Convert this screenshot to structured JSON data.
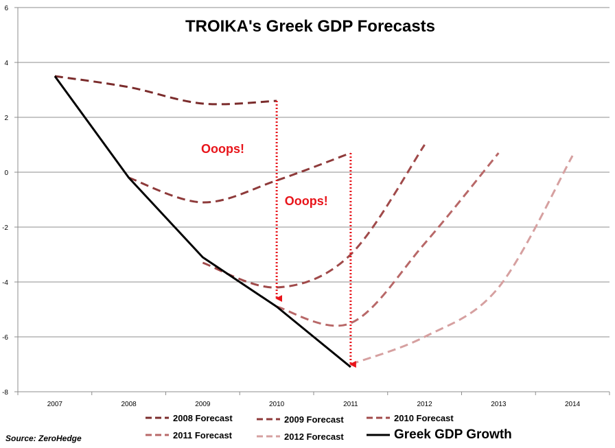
{
  "chart_data": {
    "type": "line",
    "title": "TROIKA's Greek GDP Forecasts",
    "xlabel": "",
    "ylabel": "",
    "x_ticks": [
      "2007",
      "2008",
      "2009",
      "2010",
      "2011",
      "2012",
      "2013",
      "2014"
    ],
    "xlim": [
      2006.5,
      2014.5
    ],
    "ylim": [
      -8,
      6
    ],
    "y_ticks": [
      6,
      4,
      2,
      0,
      -2,
      -4,
      -6,
      -8
    ],
    "grid": "horizontal",
    "legend_position": "bottom",
    "series": [
      {
        "name": "2008 Forecast",
        "color": "#7b2c2c",
        "style": "dashed",
        "x": [
          2007,
          2008,
          2009,
          2010
        ],
        "y": [
          3.5,
          3.1,
          2.5,
          2.6
        ]
      },
      {
        "name": "2009 Forecast",
        "color": "#8e3a3a",
        "style": "dashed",
        "x": [
          2008,
          2009,
          2010,
          2011
        ],
        "y": [
          -0.2,
          -1.1,
          -0.3,
          0.7
        ]
      },
      {
        "name": "2010 Forecast",
        "color": "#a04a4a",
        "style": "dashed",
        "x": [
          2009,
          2010,
          2011,
          2012
        ],
        "y": [
          -3.3,
          -4.2,
          -3.0,
          1.0
        ]
      },
      {
        "name": "2011 Forecast",
        "color": "#b86868",
        "style": "dashed",
        "x": [
          2010,
          2011,
          2012,
          2013
        ],
        "y": [
          -4.9,
          -5.5,
          -2.6,
          0.7
        ]
      },
      {
        "name": "2012 Forecast",
        "color": "#d6a0a0",
        "style": "dashed",
        "x": [
          2011,
          2012,
          2013,
          2014
        ],
        "y": [
          -7.0,
          -6.0,
          -4.2,
          0.6
        ]
      },
      {
        "name": "Greek GDP Growth",
        "color": "#000000",
        "style": "solid",
        "x": [
          2007,
          2008,
          2009,
          2010,
          2011
        ],
        "y": [
          3.5,
          -0.2,
          -3.1,
          -4.9,
          -7.1
        ]
      }
    ],
    "annotations": [
      {
        "text": "Ooops!",
        "x": 2009.27,
        "y": 0.7
      },
      {
        "text": "Ooops!",
        "x": 2010.4,
        "y": -1.2
      }
    ],
    "arrows": [
      {
        "x": 2010,
        "y_from": 2.6,
        "y_to": -4.6,
        "color": "#e8141a"
      },
      {
        "x": 2011,
        "y_from": 0.7,
        "y_to": -7.0,
        "color": "#e8141a"
      }
    ],
    "source": "Source: ZeroHedge"
  }
}
